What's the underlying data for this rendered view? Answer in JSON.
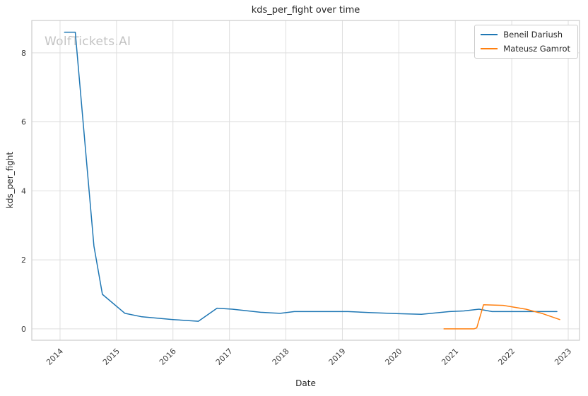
{
  "watermark": "WolfTickets.AI",
  "chart_data": {
    "type": "line",
    "title": "kds_per_fight over time",
    "xlabel": "Date",
    "ylabel": "kds_per_fight",
    "xlim": [
      2013.5,
      2023.2
    ],
    "ylim": [
      -0.33,
      8.94
    ],
    "xticks": [
      2014,
      2015,
      2016,
      2017,
      2018,
      2019,
      2020,
      2021,
      2022,
      2023
    ],
    "yticks": [
      0,
      2,
      4,
      6,
      8
    ],
    "grid": true,
    "legend_position": "upper right",
    "series": [
      {
        "name": "Beneil Dariush",
        "color": "#1f77b4",
        "x": [
          2014.08,
          2014.27,
          2014.6,
          2014.75,
          2015.15,
          2015.45,
          2016.0,
          2016.45,
          2016.78,
          2017.05,
          2017.55,
          2017.9,
          2018.15,
          2018.6,
          2019.1,
          2019.5,
          2020.0,
          2020.4,
          2020.9,
          2021.15,
          2021.42,
          2021.65,
          2022.1,
          2022.45,
          2022.8
        ],
        "y": [
          8.6,
          8.6,
          2.4,
          1.0,
          0.45,
          0.35,
          0.27,
          0.22,
          0.6,
          0.57,
          0.48,
          0.45,
          0.5,
          0.5,
          0.5,
          0.47,
          0.44,
          0.42,
          0.5,
          0.52,
          0.57,
          0.5,
          0.5,
          0.5,
          0.5
        ]
      },
      {
        "name": "Mateusz Gamrot",
        "color": "#ff7f0e",
        "x": [
          2020.8,
          2021.33,
          2021.38,
          2021.5,
          2021.85,
          2022.25,
          2022.55,
          2022.85
        ],
        "y": [
          0.0,
          0.0,
          0.03,
          0.7,
          0.68,
          0.57,
          0.44,
          0.27
        ]
      }
    ]
  }
}
